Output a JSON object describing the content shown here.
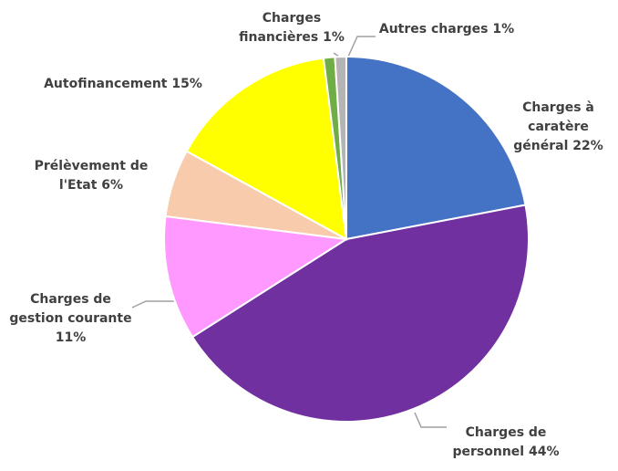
{
  "chart_data": {
    "type": "pie",
    "categories": [
      "Charges à caratère général",
      "Charges de personnel",
      "Charges de gestion courante",
      "Prélèvement de l'Etat",
      "Autofinancement",
      "Charges financières",
      "Autres charges"
    ],
    "values": [
      22,
      44,
      11,
      6,
      15,
      1,
      1
    ],
    "value_labels": [
      "22%",
      "44%",
      "11%",
      "6%",
      "15%",
      "1%",
      "1%"
    ],
    "colors": [
      "#4472c4",
      "#7030a0",
      "#ff99ff",
      "#f8cbad",
      "#ffff00",
      "#70ad47",
      "#b4b4b4"
    ]
  }
}
